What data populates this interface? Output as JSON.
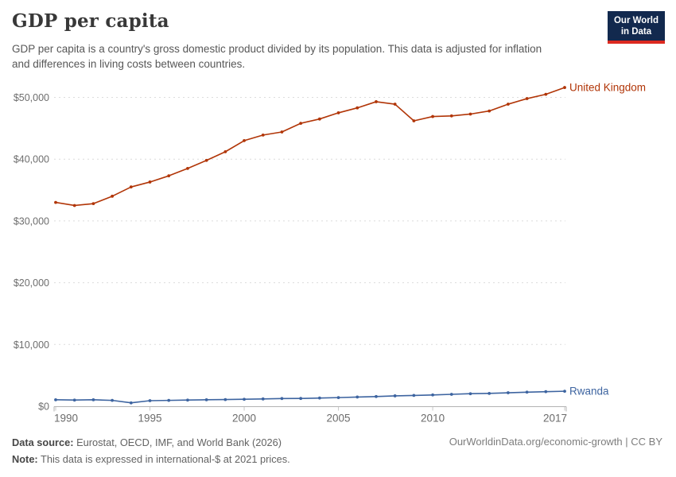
{
  "header": {
    "title": "GDP per capita",
    "subtitle_lines": [
      "GDP per capita is a country's gross domestic product divided by its population. This data is adjusted for inflation",
      "and differences in living costs between countries."
    ]
  },
  "logo": {
    "line1": "Our World",
    "line2": "in Data",
    "bg_color": "#12294E",
    "accent_color": "#DC2A20"
  },
  "chart_data": {
    "type": "line",
    "title": "GDP per capita",
    "xlabel": "",
    "ylabel": "",
    "x_range": [
      1990,
      2017
    ],
    "ylim": [
      0,
      53000
    ],
    "grid": "dashed-horizontal",
    "legend_position": "end-of-line-labels",
    "x": [
      1990,
      1991,
      1992,
      1993,
      1994,
      1995,
      1996,
      1997,
      1998,
      1999,
      2000,
      2001,
      2002,
      2003,
      2004,
      2005,
      2006,
      2007,
      2008,
      2009,
      2010,
      2011,
      2012,
      2013,
      2014,
      2015,
      2016,
      2017
    ],
    "x_ticks": [
      1990,
      1995,
      2000,
      2005,
      2010,
      2017
    ],
    "y_ticks": [
      0,
      10000,
      20000,
      30000,
      40000,
      50000
    ],
    "y_tick_labels": [
      "$0",
      "$10,000",
      "$20,000",
      "$30,000",
      "$40,000",
      "$50,000"
    ],
    "series": [
      {
        "name": "United Kingdom",
        "color": "#B13507",
        "values": [
          33000,
          32500,
          32800,
          34000,
          35500,
          36300,
          37300,
          38500,
          39800,
          41200,
          43000,
          43900,
          44400,
          45800,
          46500,
          47500,
          48300,
          49300,
          48900,
          46200,
          46900,
          47000,
          47300,
          47800,
          48900,
          49800,
          50500,
          51600
        ]
      },
      {
        "name": "Rwanda",
        "color": "#3D64A0",
        "values": [
          1050,
          1000,
          1050,
          950,
          550,
          900,
          950,
          1000,
          1050,
          1080,
          1130,
          1180,
          1250,
          1260,
          1330,
          1400,
          1490,
          1570,
          1680,
          1750,
          1830,
          1930,
          2030,
          2080,
          2180,
          2280,
          2360,
          2430
        ]
      }
    ]
  },
  "footer": {
    "source_label": "Data source:",
    "source_text": " Eurostat, OECD, IMF, and World Bank (2026)",
    "note_label": "Note:",
    "note_text": " This data is expressed in international-$ at 2021 prices.",
    "attribution": "OurWorldinData.org/economic-growth | CC BY"
  }
}
